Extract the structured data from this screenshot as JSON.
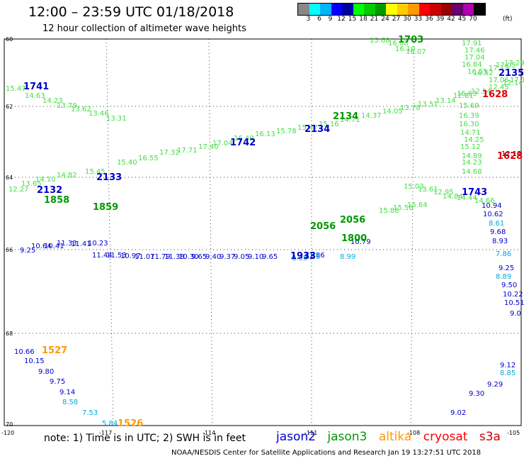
{
  "header": {
    "title": "12:00 – 23:59 UTC 01/18/2018",
    "subtitle": "12 hour collection of altimeter wave heights"
  },
  "colorbar": {
    "colors": [
      "#888888",
      "#00ffff",
      "#00b4ff",
      "#0000ff",
      "#0000a0",
      "#00ff00",
      "#00cc00",
      "#009900",
      "#ffff00",
      "#ffcc00",
      "#ff9900",
      "#ff0000",
      "#cc0000",
      "#990000",
      "#6a006a",
      "#b000b0",
      "#000000"
    ],
    "ticks": [
      "3",
      "6",
      "9",
      "12",
      "15",
      "18",
      "21",
      "24",
      "27",
      "30",
      "33",
      "36",
      "39",
      "42",
      "45",
      "70"
    ],
    "unit": "(ft)"
  },
  "axes": {
    "lat_labels": [
      "60",
      "62",
      "64",
      "66",
      "68",
      "70"
    ],
    "lon_labels": [
      "-120",
      "-117",
      "-114",
      "-111",
      "-108",
      "-105"
    ]
  },
  "passes": {
    "lightgreen": {
      "color": "#44dd44",
      "values": [
        "15.47",
        "14.63",
        "14.23",
        "13.79",
        "13.62",
        "13.46",
        "13.31",
        "12.27",
        "13.65",
        "14.10",
        "14.82",
        "15.45",
        "15.40",
        "16.55",
        "17.32",
        "17.71",
        "17.40",
        "17.04",
        "16.49",
        "16.13",
        "15.78",
        "15.47",
        "15.16",
        "14.71",
        "14.37",
        "14.05",
        "13.78",
        "13.51",
        "13.14",
        "12.81",
        "12.54",
        "12.45",
        "12.14",
        "15.68",
        "16.08",
        "16.10",
        "16.07",
        "17.91",
        "17.46",
        "17.04",
        "16.84",
        "16.55",
        "16.52",
        "17.15",
        "17.05",
        "17.29",
        "17.12",
        "17.06",
        "16.63",
        "16.39",
        "15.69",
        "16.30",
        "14.71",
        "14.25",
        "15.12",
        "14.89",
        "14.23",
        "14.68",
        "15.03",
        "13.61",
        "12.95",
        "14.84",
        "14.44",
        "14.66",
        "15.88",
        "15.56",
        "15.64"
      ]
    },
    "green": {
      "color": "#009900",
      "values": [
        "1703",
        "1858",
        "1859",
        "2056",
        "2056",
        "2134",
        "1800"
      ]
    },
    "blue_labels": {
      "color": "#0000cc",
      "values": [
        "1741",
        "2132",
        "2133",
        "1742",
        "1933",
        "2134",
        "1743",
        "2135"
      ]
    },
    "blue": {
      "color": "#0000cc",
      "values": [
        "9.25",
        "10.64",
        "10.41",
        "11.33",
        "11.41",
        "10.23",
        "11.44",
        "11.53",
        "10.97",
        "11.07",
        "11.79",
        "11.38",
        "10.30",
        "9.65",
        "9.40",
        "9.37",
        "9.05",
        "9.10",
        "9.65",
        "11.86",
        "10.79",
        "10.94",
        "10.62",
        "9.68",
        "8.93",
        "9.25",
        "9.50",
        "10.22",
        "10.51",
        "9.0",
        "10.66",
        "10.15",
        "9.80",
        "9.75",
        "9.14",
        "9.12",
        "9.29",
        "9.30",
        "9.02",
        "12.12"
      ]
    },
    "cyan": {
      "color": "#00aadd",
      "values": [
        "8.58",
        "7.53",
        "5.84",
        "8.61",
        "8.85",
        "7.86",
        "8.95",
        "8.53",
        "8.99",
        "8.89"
      ]
    },
    "orange": {
      "color": "#ff9900",
      "values": [
        "1527",
        "1526"
      ]
    },
    "red": {
      "color": "#dd0000",
      "values": [
        "1628",
        "1628"
      ]
    }
  },
  "note": "note:  1) Time is in UTC;  2) SWH is in feet",
  "legend": [
    {
      "label": "jason2",
      "color": "#0000cc"
    },
    {
      "label": "jason3",
      "color": "#009900"
    },
    {
      "label": "altika",
      "color": "#ff9900"
    },
    {
      "label": "cryosat",
      "color": "#ff0000"
    },
    {
      "label": "s3a",
      "color": "#cc0000"
    }
  ],
  "footer": "NOAA/NESDIS Center for Satellite Applications and Research    Jan 19 13:27:51 UTC 2018"
}
